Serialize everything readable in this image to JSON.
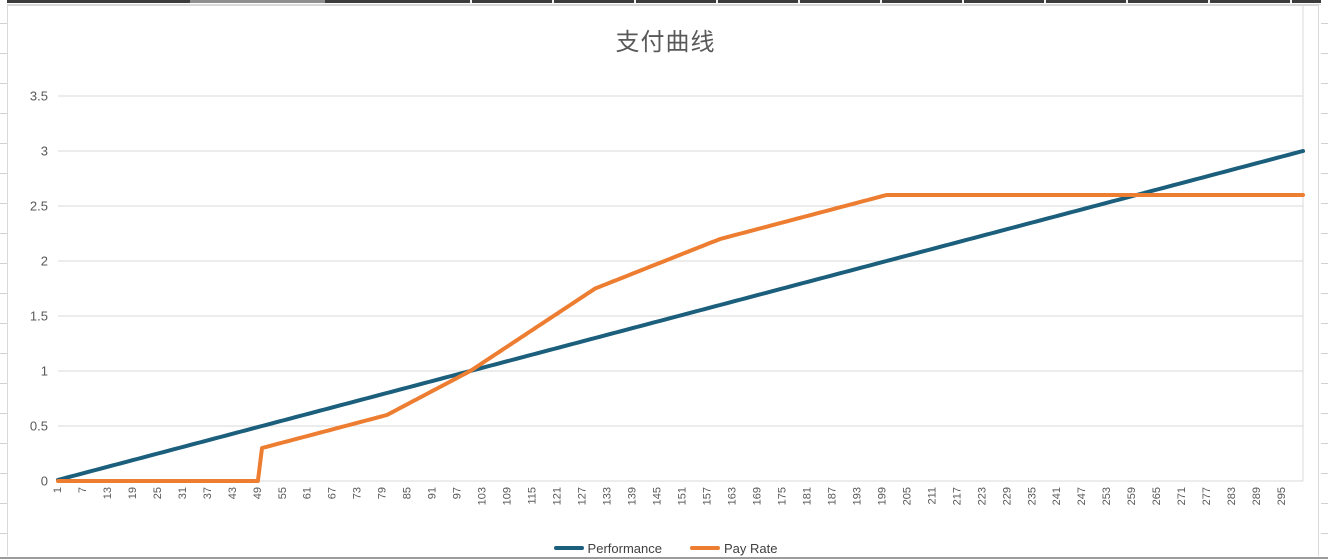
{
  "chart_data": {
    "type": "line",
    "title": "支付曲线",
    "xlim": [
      1,
      300
    ],
    "ylim": [
      0,
      3.5
    ],
    "grid": true,
    "legend_position": "bottom",
    "y_ticks": [
      "0",
      "0.5",
      "1",
      "1.5",
      "2",
      "2.5",
      "3",
      "3.5"
    ],
    "x_ticks": [
      1,
      7,
      13,
      19,
      25,
      31,
      37,
      43,
      49,
      55,
      61,
      67,
      73,
      79,
      85,
      91,
      97,
      103,
      109,
      115,
      121,
      127,
      133,
      139,
      145,
      151,
      157,
      163,
      169,
      175,
      181,
      187,
      193,
      199,
      205,
      211,
      217,
      223,
      229,
      235,
      241,
      247,
      253,
      259,
      265,
      271,
      277,
      283,
      289,
      295
    ],
    "series": [
      {
        "name": "Performance",
        "color": "#1b5f7d",
        "interpolation": "linear",
        "breakpoints": [
          [
            1,
            0.01
          ],
          [
            300,
            3.0
          ]
        ]
      },
      {
        "name": "Pay Rate",
        "color": "#ed7d31",
        "interpolation": "linear",
        "breakpoints": [
          [
            1,
            0
          ],
          [
            49,
            0
          ],
          [
            50,
            0.3
          ],
          [
            80,
            0.6
          ],
          [
            100,
            1.0
          ],
          [
            130,
            1.75
          ],
          [
            160,
            2.2
          ],
          [
            200,
            2.6
          ],
          [
            300,
            2.6
          ]
        ]
      }
    ],
    "colors": {
      "gridline": "#d9d9d9",
      "axis_text": "#595959",
      "title_text": "#595959",
      "legend_text": "#404040"
    }
  }
}
